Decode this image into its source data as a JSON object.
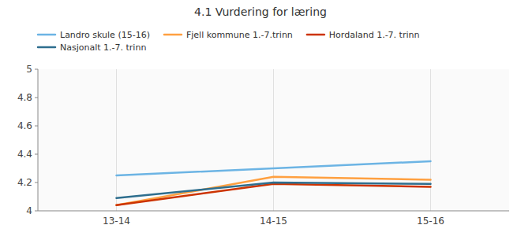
{
  "chart_data": {
    "type": "line",
    "title": "4.1 Vurdering for læring",
    "categories": [
      "13-14",
      "14-15",
      "15-16"
    ],
    "series": [
      {
        "name": "Landro skule (15-16)",
        "color": "#6CB4E4",
        "values": [
          4.25,
          4.3,
          4.35
        ]
      },
      {
        "name": "Fjell kommune 1.-7.trinn",
        "color": "#FFA040",
        "values": [
          4.04,
          4.24,
          4.22
        ]
      },
      {
        "name": "Hordaland 1.-7. trinn",
        "color": "#CC3300",
        "values": [
          4.04,
          4.19,
          4.17
        ]
      },
      {
        "name": "Nasjonalt 1.-7. trinn",
        "color": "#2E6E8E",
        "values": [
          4.09,
          4.2,
          4.19
        ]
      }
    ],
    "ylim": [
      4.0,
      5.0
    ],
    "yticks": [
      4,
      4.2,
      4.4,
      4.6,
      4.8,
      5
    ],
    "grid": true,
    "legend": "top"
  }
}
